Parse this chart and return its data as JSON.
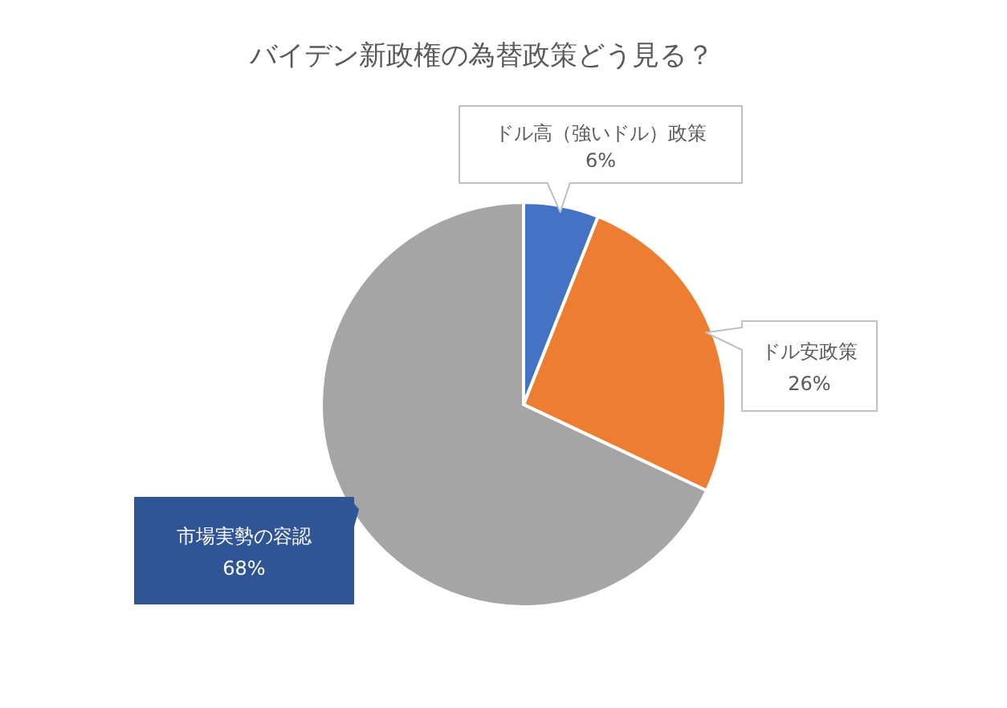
{
  "chart_data": {
    "type": "pie",
    "title": "バイデン新政権の為替政策どう見る？",
    "categories": [
      "ドル高（強いドル）政策",
      "ドル安政策",
      "市場実勢の容認"
    ],
    "values": [
      6,
      26,
      68
    ],
    "colors": [
      "#4472c4",
      "#ed7d31",
      "#a5a5a5"
    ],
    "value_labels": [
      "6%",
      "26%",
      "68%"
    ],
    "legend": false
  }
}
